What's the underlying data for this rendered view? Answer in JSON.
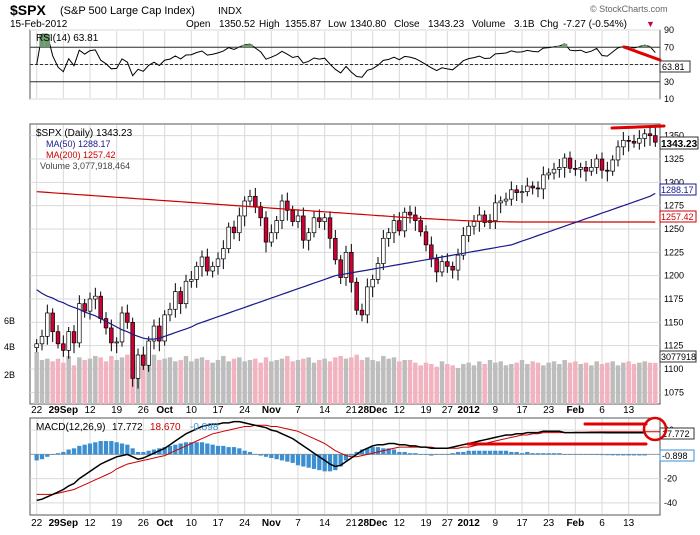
{
  "header": {
    "symbol": "$SPX",
    "name": "(S&P 500 Large Cap Index)",
    "exchange": "INDX",
    "date": "15-Feb-2012",
    "watermark": "© StockCharts.com",
    "open_label": "Open",
    "open": "1350.52",
    "high_label": "High",
    "high": "1355.87",
    "low_label": "Low",
    "low": "1340.80",
    "close_label": "Close",
    "close": "1343.23",
    "volume_label": "Volume",
    "volume": "3.1B",
    "chg_label": "Chg",
    "chg": "-7.27 (-0.54%)",
    "chg_arrow": "▼"
  },
  "colors": {
    "up": "#ffffff",
    "down": "#cc0033",
    "grid": "#d9d9d9",
    "frame": "#555555",
    "ma50": "#1a1a8c",
    "ma200": "#cc0000",
    "vol_up": "#bdbdbd",
    "vol_down": "#f2b3c0",
    "macd_hist": "#3b8fd0",
    "annot": "#e00000",
    "rsi_fill": "#6f9a6f"
  },
  "chart_data": [
    {
      "type": "line",
      "title": "RSI(14) 63.81",
      "legend": "RSI(14) 63.81",
      "series": [
        {
          "name": "RSI(14)",
          "last": 63.81
        }
      ],
      "ylim": [
        10,
        90
      ],
      "yticks": [
        10,
        30,
        50,
        70,
        90
      ],
      "reference_lines": [
        30,
        50,
        70
      ],
      "right_label": "63.81"
    },
    {
      "type": "line",
      "title": "$SPX (Daily) 1343.23",
      "legend": [
        "$SPX (Daily) 1343.23",
        "MA(50) 1288.17",
        "MA(200) 1257.42",
        "Volume 3,077,918,464"
      ],
      "ylim": [
        1062.5,
        1362.5
      ],
      "yticks": [
        1075,
        1100,
        1125,
        1150,
        1175,
        1200,
        1225,
        1250,
        1275,
        1300,
        1325,
        1350
      ],
      "left_volume_ticks": [
        "6B",
        "4B",
        "2B"
      ],
      "right_labels": {
        "close": "1343.23",
        "ma50": "1288.17",
        "ma200": "1257.42",
        "volume": "3077918"
      },
      "x_tick_labels": [
        "22",
        "29Sep",
        "12",
        "19",
        "26",
        "Oct",
        "10",
        "17",
        "24",
        "Nov",
        "7",
        "14",
        "21",
        "28Dec",
        "12",
        "19",
        "27",
        "2012",
        "9",
        "17",
        "23",
        "Feb",
        "6",
        "13"
      ],
      "closes": [
        1127,
        1135,
        1160,
        1140,
        1127,
        1120,
        1140,
        1128,
        1170,
        1162,
        1175,
        1178,
        1154,
        1144,
        1128,
        1129,
        1160,
        1150,
        1090,
        1115,
        1104,
        1130,
        1146,
        1130,
        1158,
        1164,
        1183,
        1170,
        1194,
        1196,
        1210,
        1220,
        1205,
        1210,
        1218,
        1229,
        1252,
        1246,
        1264,
        1280,
        1285,
        1274,
        1262,
        1236,
        1246,
        1259,
        1280,
        1270,
        1258,
        1264,
        1238,
        1246,
        1262,
        1258,
        1262,
        1240,
        1217,
        1198,
        1225,
        1193,
        1163,
        1158,
        1188,
        1196,
        1213,
        1240,
        1246,
        1259,
        1248,
        1268,
        1265,
        1259,
        1247,
        1233,
        1218,
        1204,
        1215,
        1210,
        1206,
        1222,
        1243,
        1253,
        1258,
        1265,
        1257,
        1259,
        1278,
        1280,
        1282,
        1292,
        1289,
        1290,
        1296,
        1294,
        1293,
        1308,
        1310,
        1314,
        1316,
        1326,
        1315,
        1314,
        1316,
        1312,
        1316,
        1325,
        1313,
        1312,
        1324,
        1338,
        1345,
        1344,
        1342,
        1347,
        1352,
        1350,
        1343
      ],
      "ma50": [
        1185,
        1181,
        1178,
        1176,
        1173,
        1171,
        1168,
        1166,
        1164,
        1161,
        1159,
        1157,
        1154,
        1151,
        1148,
        1145,
        1142,
        1140,
        1137,
        1135,
        1133,
        1132,
        1132,
        1133,
        1135,
        1137,
        1139,
        1141,
        1143,
        1145,
        1148,
        1150,
        1152,
        1154,
        1156,
        1158,
        1160,
        1162,
        1164,
        1166,
        1168,
        1170,
        1172,
        1174,
        1176,
        1178,
        1180,
        1182,
        1184,
        1186,
        1188,
        1190,
        1192,
        1194,
        1196,
        1198,
        1200,
        1201,
        1202,
        1203,
        1204,
        1205,
        1206,
        1207,
        1208,
        1209,
        1210,
        1211,
        1212,
        1213,
        1214,
        1215,
        1216,
        1217,
        1218,
        1219,
        1220,
        1221,
        1222,
        1223,
        1224,
        1225,
        1226,
        1227,
        1228,
        1229,
        1230,
        1231,
        1232,
        1233,
        1235,
        1237,
        1239,
        1241,
        1243,
        1245,
        1247,
        1249,
        1251,
        1253,
        1255,
        1257,
        1259,
        1261,
        1263,
        1265,
        1267,
        1269,
        1271,
        1273,
        1275,
        1277,
        1279,
        1281,
        1283,
        1285,
        1288.17
      ],
      "ma200": [
        1290,
        1289.6,
        1289.2,
        1288.8,
        1288.4,
        1288,
        1287.6,
        1287.2,
        1286.8,
        1286.4,
        1286,
        1285.6,
        1285.2,
        1284.8,
        1284.4,
        1284,
        1283.6,
        1283.2,
        1282.8,
        1282.4,
        1282,
        1281.6,
        1281.2,
        1280.8,
        1280.4,
        1280,
        1279.6,
        1279.2,
        1278.8,
        1278.4,
        1278,
        1277.6,
        1277.2,
        1276.8,
        1276.4,
        1276,
        1275.6,
        1275.2,
        1274.8,
        1274.4,
        1274,
        1273.6,
        1273.2,
        1272.8,
        1272.4,
        1272,
        1271.6,
        1271.2,
        1270.8,
        1270.4,
        1270,
        1269.6,
        1269.2,
        1268.8,
        1268.4,
        1268,
        1267.6,
        1267.2,
        1266.8,
        1266.4,
        1266,
        1265.6,
        1265.2,
        1264.8,
        1264.4,
        1264,
        1263.6,
        1263.2,
        1262.8,
        1262.4,
        1262,
        1261.7,
        1261.4,
        1261.1,
        1260.8,
        1260.5,
        1260.2,
        1259.9,
        1259.6,
        1259.3,
        1259,
        1258.8,
        1258.6,
        1258.4,
        1258.2,
        1258,
        1257.9,
        1257.8,
        1257.7,
        1257.6,
        1257.5,
        1257.5,
        1257.5,
        1257.5,
        1257.5,
        1257.5,
        1257.5,
        1257.5,
        1257.5,
        1257.5,
        1257.5,
        1257.5,
        1257.5,
        1257.5,
        1257.5,
        1257.5,
        1257.5,
        1257.5,
        1257.5,
        1257.5,
        1257.5,
        1257.5,
        1257.5,
        1257.5,
        1257.5,
        1257.5,
        1257.42
      ],
      "volume_billions": [
        3.9,
        3.3,
        3.4,
        3.2,
        3.4,
        3.1,
        3.6,
        2.9,
        3.5,
        3.3,
        3.4,
        3.6,
        3.5,
        3.2,
        3.6,
        3.3,
        3.5,
        3.7,
        3.3,
        3.2,
        3.6,
        3.5,
        3.7,
        3.3,
        3.4,
        3.5,
        3.2,
        3.3,
        3.6,
        3.2,
        3.4,
        3.5,
        3.3,
        3.1,
        3.3,
        3.6,
        3.2,
        3.4,
        3.5,
        3.2,
        3.3,
        3.4,
        3.1,
        3.5,
        3.2,
        3.3,
        3.4,
        3.6,
        3.2,
        3.3,
        3.4,
        3.5,
        3.1,
        3.3,
        3.4,
        3.2,
        3.5,
        3.6,
        3.4,
        3.5,
        3.7,
        3.3,
        3.5,
        3.3,
        3.2,
        3.6,
        3.4,
        3.5,
        3.2,
        3.3,
        3.3,
        3.1,
        2.9,
        3.1,
        3.0,
        2.8,
        3.2,
        3.0,
        2.9,
        2.7,
        3.0,
        3.1,
        2.9,
        3.2,
        3.0,
        3.3,
        3.1,
        3.2,
        2.9,
        3.0,
        3.1,
        3.3,
        3.0,
        3.2,
        3.1,
        2.9,
        3.1,
        3.2,
        3.0,
        3.3,
        3.1,
        3.2,
        3.0,
        3.1,
        2.9,
        3.2,
        3.0,
        3.1,
        3.2,
        2.9,
        3.1,
        3.2,
        3.0,
        3.1,
        3.2,
        3.1,
        3.08
      ]
    },
    {
      "type": "line",
      "title": "MACD(12,26,9) 17.772, 18.670, -0.898",
      "legend": {
        "name": "MACD(12,26,9)",
        "macd": "17.772",
        "signal": "18.670",
        "hist": "-0.898"
      },
      "ylim": [
        -50,
        30
      ],
      "yticks": [
        -40,
        -20,
        0,
        20
      ],
      "right_labels": {
        "macd": "17.772",
        "hist": "-0.898"
      },
      "x_tick_labels": [
        "22",
        "29Sep",
        "12",
        "19",
        "26",
        "Oct",
        "10",
        "17",
        "24",
        "Nov",
        "7",
        "14",
        "21",
        "28Dec",
        "12",
        "19",
        "27",
        "2012",
        "9",
        "17",
        "23",
        "Feb",
        "6",
        "13"
      ],
      "macd": [
        -38,
        -37,
        -35,
        -33,
        -31,
        -29,
        -26,
        -24,
        -20,
        -17,
        -14,
        -11,
        -8,
        -6,
        -4,
        -2,
        -1,
        0,
        -2,
        -4,
        -3,
        -1,
        1,
        3,
        5,
        8,
        11,
        14,
        17,
        19,
        21,
        23,
        24,
        25,
        25,
        26,
        26,
        27,
        27,
        26,
        25,
        24,
        23,
        22,
        20,
        19,
        17,
        15,
        13,
        10,
        7,
        4,
        1,
        -2,
        -5,
        -8,
        -10,
        -9,
        -6,
        -3,
        0,
        3,
        5,
        7,
        8,
        8,
        9,
        9,
        8,
        8,
        7,
        7,
        6,
        6,
        5,
        5,
        5,
        5,
        6,
        7,
        8,
        9,
        10,
        11,
        12,
        13,
        14,
        15,
        16,
        16,
        17,
        17,
        18,
        18,
        18,
        19,
        19,
        19,
        19,
        18,
        18,
        18,
        18,
        18,
        18,
        18,
        18,
        17.9,
        17.8,
        17.8,
        17.8,
        17.8,
        17.8,
        17.77,
        17.772
      ],
      "signal": [
        -33,
        -33,
        -33,
        -33,
        -32,
        -31,
        -30,
        -29,
        -27,
        -25,
        -23,
        -21,
        -19,
        -17,
        -15,
        -12,
        -10,
        -8,
        -7,
        -6,
        -5,
        -4,
        -3,
        -2,
        -1,
        1,
        3,
        5,
        7,
        9,
        11,
        13,
        15,
        17,
        18,
        19,
        20,
        21,
        22,
        23,
        23,
        24,
        24,
        24,
        23,
        23,
        22,
        21,
        20,
        19,
        17,
        15,
        13,
        11,
        9,
        6,
        3,
        1,
        -1,
        -2,
        -2,
        -1,
        0,
        1,
        2,
        3,
        4,
        5,
        6,
        6,
        6,
        6,
        6,
        6,
        6,
        5,
        5,
        5,
        5,
        5,
        6,
        6,
        7,
        8,
        9,
        10,
        11,
        12,
        13,
        14,
        15,
        16,
        16,
        17,
        17,
        18,
        18,
        18,
        18,
        18,
        18,
        18.2,
        18.3,
        18.4,
        18.5,
        18.5,
        18.6,
        18.6,
        18.6,
        18.65,
        18.67,
        18.67,
        18.67,
        18.67,
        18.67,
        18.67,
        18.67,
        18.67
      ]
    }
  ]
}
